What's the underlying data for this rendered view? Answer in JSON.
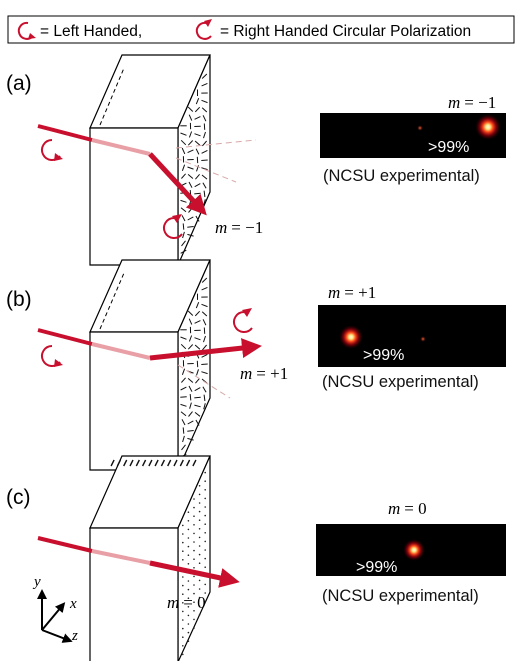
{
  "legend": {
    "left_label": "= Left Handed,",
    "right_label": "= Right Handed Circular Polarization",
    "accent_color": "#c8102e"
  },
  "panels": [
    {
      "label": "(a)",
      "order_symbol": "m",
      "order_value": "= −1",
      "spot_order_value": "= −1",
      "efficiency": ">99%",
      "caption": "(NCSU experimental)"
    },
    {
      "label": "(b)",
      "order_symbol": "m",
      "order_value": "= +1",
      "spot_order_value": "= +1",
      "efficiency": ">99%",
      "caption": "(NCSU experimental)"
    },
    {
      "label": "(c)",
      "order_symbol": "m",
      "order_value": "= 0",
      "spot_order_value": "= 0",
      "efficiency": ">99%",
      "caption": "(NCSU experimental)"
    }
  ],
  "axes": {
    "x": "x",
    "y": "y",
    "z": "z"
  }
}
